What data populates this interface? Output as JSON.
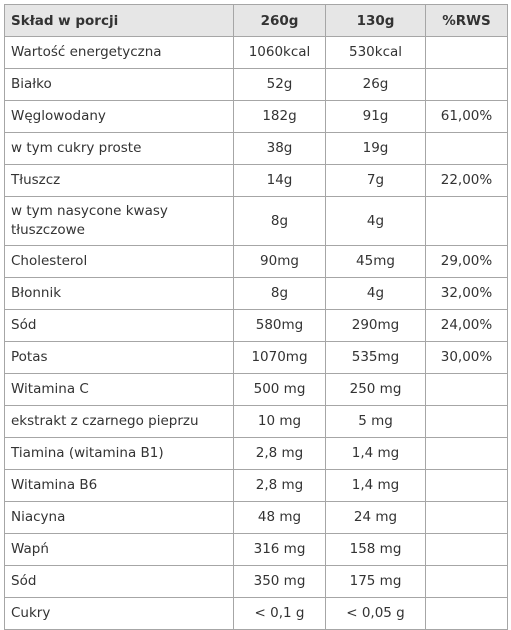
{
  "table": {
    "header": [
      "Skład w porcji",
      "260g",
      "130g",
      "%RWS"
    ],
    "rows": [
      [
        "Wartość energetyczna",
        "1060kcal",
        "530kcal",
        null
      ],
      [
        "Białko",
        "52g",
        "26g",
        null
      ],
      [
        "Węglowodany",
        "182g",
        "91g",
        "61,00%"
      ],
      [
        "w tym cukry proste",
        "38g",
        "19g",
        null
      ],
      [
        "Tłuszcz",
        "14g",
        "7g",
        "22,00%"
      ],
      [
        "w tym nasycone kwasy tłuszczowe",
        "8g",
        "4g",
        null
      ],
      [
        "Cholesterol",
        "90mg",
        "45mg",
        "29,00%"
      ],
      [
        "Błonnik",
        "8g",
        "4g",
        "32,00%"
      ],
      [
        "Sód",
        "580mg",
        "290mg",
        "24,00%"
      ],
      [
        "Potas",
        "1070mg",
        "535mg",
        "30,00%"
      ],
      [
        "Witamina C",
        "500 mg",
        "250 mg",
        null
      ],
      [
        "ekstrakt z czarnego pieprzu",
        "10 mg",
        "5 mg",
        null
      ],
      [
        "Tiamina (witamina B1)",
        "2,8 mg",
        "1,4 mg",
        null
      ],
      [
        "Witamina B6",
        "2,8 mg",
        "1,4 mg",
        null
      ],
      [
        "Niacyna",
        "48 mg",
        "24 mg",
        null
      ],
      [
        "Wapń",
        "316 mg",
        "158 mg",
        null
      ],
      [
        "Sód",
        "350 mg",
        "175 mg",
        null
      ],
      [
        "Cukry",
        "< 0,1 g",
        "< 0,05 g",
        null
      ]
    ]
  }
}
